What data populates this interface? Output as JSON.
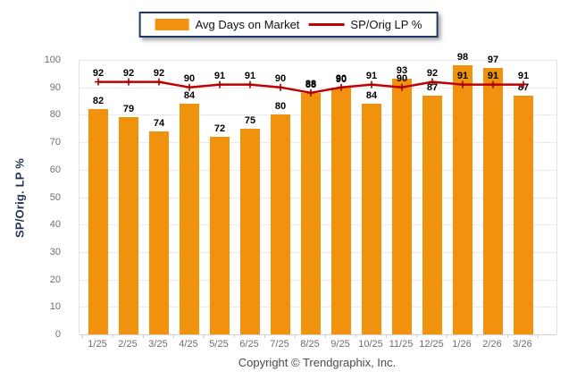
{
  "legend": {
    "bar_label": "Avg Days on Market",
    "line_label": "SP/Orig LP %"
  },
  "footer": {
    "copyright": "Copyright © Trendgraphix, Inc."
  },
  "colors": {
    "bar": "#F0920D",
    "line": "#C00000",
    "line_marker": "#A50000",
    "legend_border": "#1F3864",
    "axis_title": "#1E3354",
    "tick_label": "#6E6E76",
    "gridline": "#EAEAEA"
  },
  "chart_data": {
    "type": "bar",
    "subtype": "bar+line combo",
    "title": "",
    "xlabel": "",
    "ylabel": "SP/Orig. LP %",
    "ylim": [
      0,
      100
    ],
    "ytick_step": 10,
    "grid": true,
    "legend_position": "top-center",
    "categories": [
      "1/25",
      "2/25",
      "3/25",
      "4/25",
      "5/25",
      "6/25",
      "7/25",
      "8/25",
      "9/25",
      "10/25",
      "11/25",
      "12/25",
      "1/26",
      "2/26",
      "3/26"
    ],
    "series": [
      {
        "name": "Avg Days on Market",
        "type": "bar",
        "color": "#F0920D",
        "values": [
          82,
          79,
          74,
          84,
          72,
          75,
          80,
          88,
          90,
          84,
          93,
          87,
          98,
          97,
          87
        ]
      },
      {
        "name": "SP/Orig LP %",
        "type": "line",
        "color": "#C00000",
        "values": [
          92,
          92,
          92,
          90,
          91,
          91,
          90,
          88,
          90,
          91,
          90,
          92,
          91,
          91,
          91
        ]
      }
    ]
  }
}
